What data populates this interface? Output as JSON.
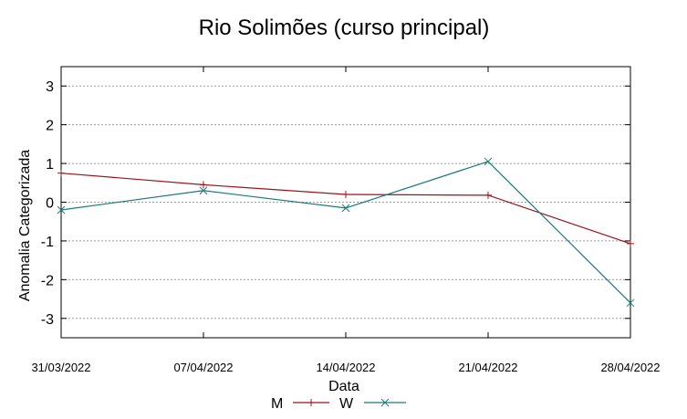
{
  "chart_data": {
    "type": "line",
    "title": "Rio Solimões (curso principal)",
    "xlabel": "Data",
    "ylabel": "Anomalia Categorizada",
    "x": [
      "31/03/2022",
      "07/04/2022",
      "14/04/2022",
      "21/04/2022",
      "28/04/2022"
    ],
    "yticks": [
      "3",
      "2",
      "1",
      "0",
      "-1",
      "-2",
      "-3"
    ],
    "ylim": [
      -3.5,
      3.5
    ],
    "grid": true,
    "legend_position": "bottom-center",
    "series": [
      {
        "name": "M",
        "color": "#a0121b",
        "marker": "plus",
        "values": [
          0.75,
          0.45,
          0.2,
          0.18,
          -1.07
        ]
      },
      {
        "name": "W",
        "color": "#1a7a7a",
        "marker": "cross",
        "values": [
          -0.2,
          0.3,
          -0.15,
          1.05,
          -2.6
        ]
      }
    ]
  }
}
